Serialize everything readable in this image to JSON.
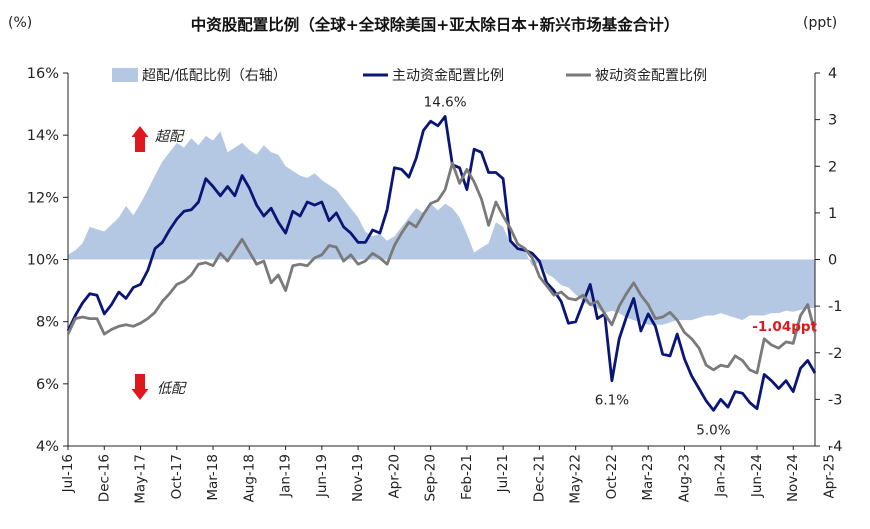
{
  "chart_data": {
    "type": "line",
    "title": "中资股配置比例（全球+全球除美国+亚太除日本+新兴市场基金合计）",
    "left_unit": "(%)",
    "right_unit": "(ppt)",
    "left_axis": {
      "min": 4,
      "max": 16,
      "ticks": [
        "4%",
        "6%",
        "8%",
        "10%",
        "12%",
        "14%",
        "16%"
      ]
    },
    "right_axis": {
      "min": -4,
      "max": 4,
      "ticks": [
        "-4",
        "-3",
        "-2",
        "-1",
        "0",
        "1",
        "2",
        "3",
        "4"
      ]
    },
    "x_start": "Jul-16",
    "x_labels": [
      "Jul-16",
      "Dec-16",
      "May-17",
      "Oct-17",
      "Mar-18",
      "Aug-18",
      "Jan-19",
      "Jun-19",
      "Nov-19",
      "Apr-20",
      "Sep-20",
      "Feb-21",
      "Jul-21",
      "Dec-21",
      "May-22",
      "Oct-22",
      "Mar-23",
      "Aug-23",
      "Jan-24",
      "Jun-24",
      "Nov-24",
      "Apr-25"
    ],
    "series": [
      {
        "name": "超配/低配比例（右轴）",
        "axis": "right",
        "kind": "area",
        "color": "#b4c8e4",
        "values": [
          0.1,
          0.2,
          0.35,
          0.7,
          0.65,
          0.6,
          0.75,
          0.9,
          1.15,
          0.95,
          1.2,
          1.5,
          1.8,
          2.1,
          2.3,
          2.5,
          2.4,
          2.6,
          2.45,
          2.65,
          2.55,
          2.75,
          2.3,
          2.4,
          2.5,
          2.35,
          2.25,
          2.45,
          2.3,
          2.25,
          2.0,
          1.9,
          1.8,
          1.75,
          1.85,
          1.7,
          1.6,
          1.5,
          1.3,
          1.1,
          0.9,
          0.6,
          0.5,
          0.55,
          0.4,
          0.5,
          0.7,
          0.9,
          1.1,
          1.0,
          1.2,
          1.05,
          1.2,
          1.1,
          0.9,
          0.55,
          0.15,
          0.25,
          0.35,
          0.8,
          0.7,
          0.35,
          0.25,
          0.2,
          -0.15,
          -0.05,
          -0.3,
          -0.4,
          -0.55,
          -0.6,
          -0.75,
          -0.9,
          -1.0,
          -1.05,
          -1.15,
          -1.1,
          -1.15,
          -1.25,
          -1.3,
          -1.35,
          -1.4,
          -1.4,
          -1.4,
          -1.35,
          -1.3,
          -1.3,
          -1.3,
          -1.25,
          -1.2,
          -1.2,
          -1.15,
          -1.2,
          -1.25,
          -1.3,
          -1.2,
          -1.2,
          -1.2,
          -1.15,
          -1.15,
          -1.1,
          -1.12,
          -1.08,
          -1.04,
          -1.04
        ]
      },
      {
        "name": "主动资金配置比例",
        "axis": "left",
        "kind": "line",
        "color": "#0a1677",
        "values": [
          7.7,
          8.2,
          8.6,
          8.9,
          8.85,
          8.25,
          8.55,
          8.95,
          8.75,
          9.1,
          9.2,
          9.65,
          10.35,
          10.55,
          10.95,
          11.3,
          11.55,
          11.6,
          11.85,
          12.6,
          12.35,
          12.05,
          12.35,
          12.05,
          12.7,
          12.3,
          11.75,
          11.4,
          11.65,
          11.2,
          10.85,
          11.55,
          11.4,
          11.85,
          11.75,
          11.85,
          11.25,
          11.5,
          11.05,
          10.85,
          10.55,
          10.55,
          10.95,
          10.85,
          11.6,
          12.95,
          12.9,
          12.65,
          13.25,
          14.15,
          14.45,
          14.3,
          14.6,
          13.05,
          12.95,
          12.25,
          13.55,
          13.45,
          12.8,
          12.8,
          12.6,
          10.6,
          10.35,
          10.3,
          10.2,
          9.95,
          9.25,
          9.0,
          8.65,
          7.95,
          8.0,
          8.6,
          9.2,
          8.1,
          8.25,
          6.1,
          7.45,
          8.15,
          8.75,
          7.7,
          8.25,
          7.85,
          6.95,
          6.9,
          7.6,
          6.8,
          6.25,
          5.85,
          5.45,
          5.15,
          5.5,
          5.25,
          5.75,
          5.7,
          5.4,
          5.2,
          6.3,
          6.1,
          5.85,
          6.1,
          5.75,
          6.5,
          6.75,
          6.35
        ]
      },
      {
        "name": "被动资金配置比例",
        "axis": "left",
        "kind": "line",
        "color": "#7a7a7a",
        "values": [
          7.6,
          8.1,
          8.15,
          8.1,
          8.1,
          7.6,
          7.75,
          7.85,
          7.9,
          7.85,
          7.95,
          8.1,
          8.3,
          8.65,
          8.9,
          9.2,
          9.3,
          9.5,
          9.85,
          9.9,
          9.8,
          10.2,
          9.95,
          10.3,
          10.65,
          10.25,
          9.85,
          9.95,
          9.25,
          9.5,
          9.0,
          9.8,
          9.85,
          9.8,
          10.05,
          10.15,
          10.45,
          10.4,
          9.95,
          10.15,
          9.85,
          9.95,
          10.2,
          10.05,
          9.85,
          10.45,
          10.85,
          11.2,
          11.05,
          11.45,
          11.8,
          11.9,
          12.25,
          13.1,
          12.45,
          12.9,
          12.5,
          11.95,
          11.1,
          11.85,
          11.4,
          11.0,
          10.5,
          10.35,
          10.05,
          9.45,
          9.15,
          8.85,
          8.95,
          8.75,
          8.7,
          8.85,
          8.55,
          8.65,
          8.25,
          7.9,
          8.5,
          8.9,
          9.25,
          8.85,
          8.55,
          8.1,
          8.15,
          8.3,
          8.05,
          7.65,
          7.45,
          7.15,
          6.6,
          6.45,
          6.6,
          6.55,
          6.9,
          6.75,
          6.45,
          6.35,
          7.45,
          7.25,
          7.15,
          7.35,
          7.3,
          8.2,
          8.55,
          7.65
        ]
      }
    ],
    "annotations": [
      {
        "text": "14.6%",
        "series": 1,
        "index": 52
      },
      {
        "text": "6.1%",
        "series": 1,
        "index": 75
      },
      {
        "text": "5.0%",
        "series": 1,
        "index": 89
      },
      {
        "text": "-1.04ppt",
        "series": 0,
        "index": 103,
        "color": "#e0181e"
      }
    ],
    "arrows": [
      {
        "text": "超配",
        "direction": "up",
        "color": "#e0181e"
      },
      {
        "text": "低配",
        "direction": "down",
        "color": "#e0181e"
      }
    ]
  }
}
